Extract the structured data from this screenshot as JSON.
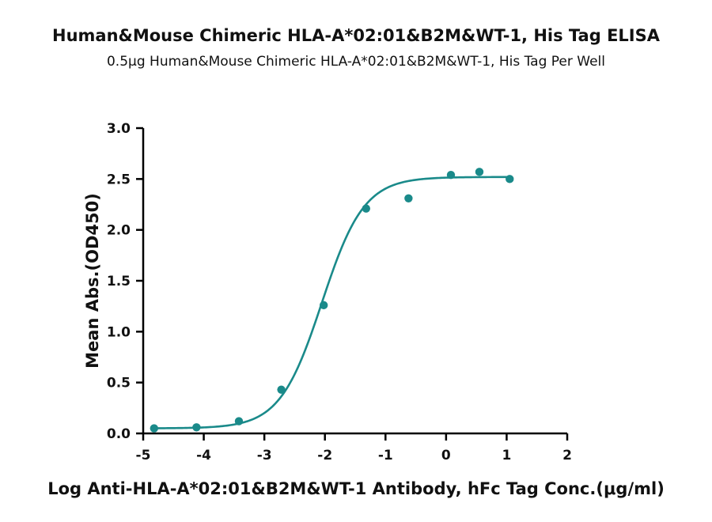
{
  "chart_data": {
    "type": "scatter",
    "title": "Human&Mouse Chimeric HLA-A*02:01&B2M&WT-1, His Tag ELISA",
    "subtitle": "0.5μg Human&Mouse Chimeric HLA-A*02:01&B2M&WT-1, His Tag Per Well",
    "xlabel": "Log Anti-HLA-A*02:01&B2M&WT-1 Antibody, hFc Tag Conc.(μg/ml)",
    "ylabel": "Mean Abs.(OD450)",
    "xlim": [
      -5,
      2
    ],
    "ylim": [
      0,
      3
    ],
    "x_ticks": [
      -5,
      -4,
      -3,
      -2,
      -1,
      0,
      1,
      2
    ],
    "x_tick_labels": [
      "-5",
      "-4",
      "-3",
      "-2",
      "-1",
      "0",
      "1",
      "2"
    ],
    "y_ticks": [
      0,
      0.5,
      1.0,
      1.5,
      2.0,
      2.5,
      3.0
    ],
    "y_tick_labels": [
      "0.0",
      "0.5",
      "1.0",
      "1.5",
      "2.0",
      "2.5",
      "3.0"
    ],
    "grid": false,
    "color": "#1a8a8a",
    "series": [
      {
        "x": [
          -4.82,
          -4.12,
          -3.42,
          -2.72,
          -2.02,
          -1.32,
          -0.62,
          0.08,
          0.55,
          1.05
        ],
        "y": [
          0.05,
          0.06,
          0.12,
          0.43,
          1.26,
          2.21,
          2.31,
          2.54,
          2.57,
          2.5
        ],
        "fit": {
          "model": "4PL",
          "bottom": 0.05,
          "top": 2.52,
          "logEC50": -2.05,
          "hill": 1.25,
          "x_range": [
            -4.82,
            1.05
          ]
        }
      }
    ]
  }
}
